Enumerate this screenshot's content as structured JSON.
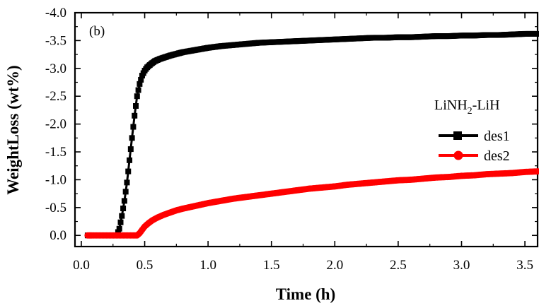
{
  "chart_data": {
    "type": "line",
    "panel_label": "(b)",
    "xlabel": "Time (h)",
    "ylabel": "WeightLoss (wt%)",
    "xlim": [
      -0.05,
      3.6
    ],
    "ylim": [
      0.2,
      -4.0
    ],
    "x_ticks": [
      "0.0",
      "0.5",
      "1.0",
      "1.5",
      "2.0",
      "2.5",
      "3.0",
      "3.5"
    ],
    "x_tick_values": [
      0.0,
      0.5,
      1.0,
      1.5,
      2.0,
      2.5,
      3.0,
      3.5
    ],
    "y_ticks": [
      "0.0",
      "-0.5",
      "-1.0",
      "-1.5",
      "-2.0",
      "-2.5",
      "-3.0",
      "-3.5",
      "-4.0"
    ],
    "y_tick_values": [
      0.0,
      -0.5,
      -1.0,
      -1.5,
      -2.0,
      -2.5,
      -3.0,
      -3.5,
      -4.0
    ],
    "legend": {
      "title_main": "LiNH",
      "title_sub": "2",
      "title_tail": "-LiH",
      "position": "right-middle"
    },
    "series": [
      {
        "name": "des1",
        "color": "#000000",
        "marker": "square",
        "x": [
          0.05,
          0.1,
          0.15,
          0.2,
          0.25,
          0.28,
          0.3,
          0.32,
          0.34,
          0.36,
          0.38,
          0.4,
          0.42,
          0.44,
          0.46,
          0.48,
          0.5,
          0.52,
          0.55,
          0.58,
          0.62,
          0.66,
          0.7,
          0.75,
          0.8,
          0.9,
          1.0,
          1.1,
          1.2,
          1.3,
          1.4,
          1.5,
          1.6,
          1.7,
          1.8,
          1.9,
          2.0,
          2.1,
          2.2,
          2.3,
          2.4,
          2.5,
          2.6,
          2.7,
          2.8,
          2.9,
          3.0,
          3.1,
          3.2,
          3.3,
          3.4,
          3.5,
          3.6
        ],
        "y": [
          0.0,
          0.0,
          0.0,
          0.0,
          0.0,
          0.0,
          -0.12,
          -0.35,
          -0.62,
          -0.95,
          -1.35,
          -1.75,
          -2.15,
          -2.5,
          -2.72,
          -2.87,
          -2.96,
          -3.02,
          -3.08,
          -3.13,
          -3.17,
          -3.2,
          -3.23,
          -3.26,
          -3.29,
          -3.33,
          -3.37,
          -3.4,
          -3.42,
          -3.44,
          -3.46,
          -3.47,
          -3.48,
          -3.49,
          -3.5,
          -3.51,
          -3.52,
          -3.53,
          -3.54,
          -3.55,
          -3.55,
          -3.56,
          -3.56,
          -3.57,
          -3.58,
          -3.58,
          -3.59,
          -3.59,
          -3.6,
          -3.6,
          -3.61,
          -3.62,
          -3.62
        ]
      },
      {
        "name": "des2",
        "color": "#ff0000",
        "marker": "circle",
        "x": [
          0.05,
          0.1,
          0.2,
          0.3,
          0.4,
          0.44,
          0.46,
          0.48,
          0.5,
          0.53,
          0.56,
          0.6,
          0.65,
          0.7,
          0.75,
          0.8,
          0.9,
          1.0,
          1.1,
          1.2,
          1.3,
          1.4,
          1.5,
          1.6,
          1.7,
          1.8,
          1.9,
          2.0,
          2.1,
          2.2,
          2.3,
          2.4,
          2.5,
          2.6,
          2.7,
          2.8,
          2.9,
          3.0,
          3.1,
          3.2,
          3.3,
          3.4,
          3.5,
          3.6
        ],
        "y": [
          0.0,
          0.0,
          0.0,
          0.0,
          0.0,
          0.0,
          -0.04,
          -0.1,
          -0.16,
          -0.22,
          -0.27,
          -0.32,
          -0.37,
          -0.41,
          -0.45,
          -0.48,
          -0.53,
          -0.58,
          -0.62,
          -0.66,
          -0.69,
          -0.72,
          -0.75,
          -0.78,
          -0.81,
          -0.84,
          -0.86,
          -0.88,
          -0.91,
          -0.93,
          -0.95,
          -0.97,
          -0.99,
          -1.0,
          -1.02,
          -1.04,
          -1.05,
          -1.07,
          -1.08,
          -1.1,
          -1.11,
          -1.12,
          -1.14,
          -1.15
        ]
      }
    ]
  }
}
